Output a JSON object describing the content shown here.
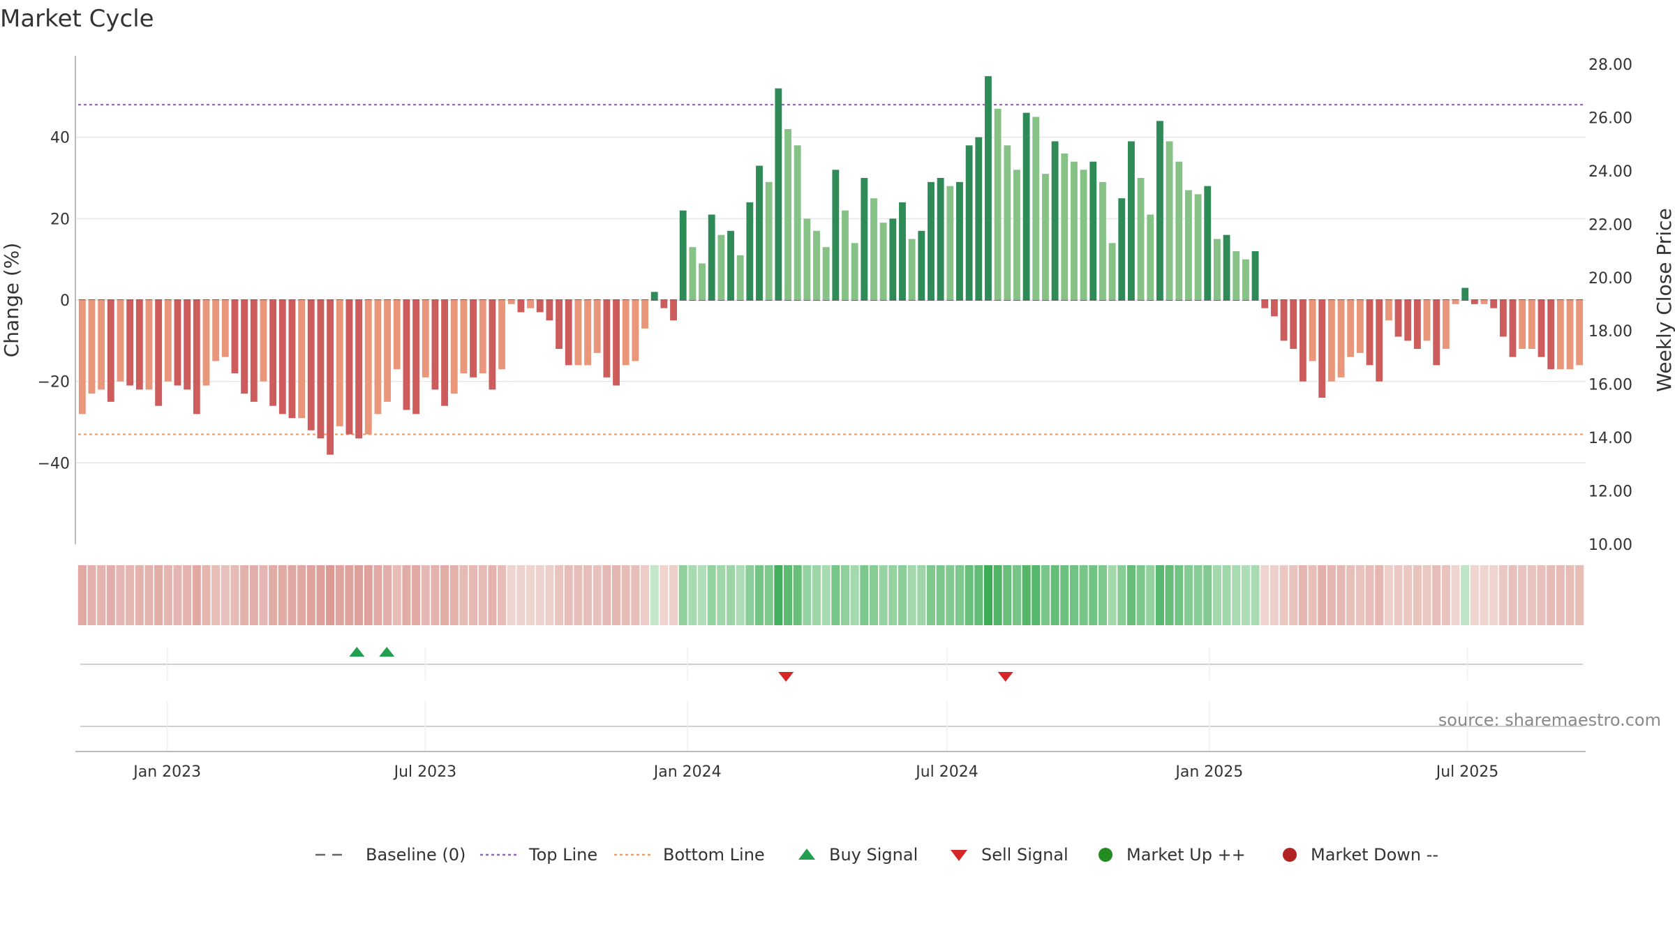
{
  "chart_data": {
    "type": "bar",
    "title": "Market Cycle",
    "ylabel": "Change (%)",
    "y2label": "Weekly Close Price",
    "ylim": [
      -60,
      60
    ],
    "y2lim": [
      10,
      28
    ],
    "yticks": [
      -40,
      -20,
      0,
      20,
      40
    ],
    "yticklabels": [
      "−40",
      "−20",
      "0",
      "20",
      "40"
    ],
    "y2ticks": [
      "10.00",
      "12.00",
      "14.00",
      "16.00",
      "18.00",
      "20.00",
      "22.00",
      "24.00",
      "26.00",
      "28.00"
    ],
    "top_line": 48,
    "bottom_line": -33,
    "x_start": "2022-10-30",
    "x_end": "2025-09-21",
    "xticks": [
      {
        "date": "2023-01-01",
        "label": "Jan 2023"
      },
      {
        "date": "2023-07-01",
        "label": "Jul 2023"
      },
      {
        "date": "2024-01-01",
        "label": "Jan 2024"
      },
      {
        "date": "2024-07-01",
        "label": "Jul 2024"
      },
      {
        "date": "2025-01-01",
        "label": "Jan 2025"
      },
      {
        "date": "2025-07-01",
        "label": "Jul 2025"
      }
    ],
    "weekly_change": [
      -28,
      -23,
      -22,
      -25,
      -20,
      -21,
      -22,
      -22,
      -26,
      -20,
      -21,
      -22,
      -28,
      -21,
      -15,
      -14,
      -18,
      -23,
      -25,
      -20,
      -26,
      -28,
      -29,
      -29,
      -32,
      -34,
      -38,
      -31,
      -33,
      -34,
      -33,
      -28,
      -25,
      -17,
      -27,
      -28,
      -19,
      -22,
      -26,
      -23,
      -18,
      -19,
      -18,
      -22,
      -17,
      -1,
      -3,
      -2,
      -3,
      -5,
      -12,
      -16,
      -16,
      -16,
      -13,
      -19,
      -21,
      -16,
      -15,
      -7,
      2,
      -2,
      -5,
      22,
      13,
      9,
      21,
      16,
      17,
      11,
      24,
      33,
      29,
      52,
      42,
      38,
      20,
      17,
      13,
      32,
      22,
      14,
      30,
      25,
      19,
      20,
      24,
      15,
      17,
      29,
      30,
      28,
      29,
      38,
      40,
      55,
      47,
      38,
      32,
      46,
      45,
      31,
      39,
      36,
      34,
      32,
      34,
      29,
      14,
      25,
      39,
      30,
      21,
      44,
      39,
      34,
      27,
      26,
      28,
      15,
      16,
      12,
      10,
      12,
      -2,
      -4,
      -10,
      -12,
      -20,
      -15,
      -24,
      -20,
      -19,
      -14,
      -13,
      -16,
      -20,
      -5,
      -9,
      -10,
      -12,
      -10,
      -16,
      -12,
      -1,
      3,
      -1,
      -1,
      -2,
      -9,
      -14,
      -12,
      -12,
      -14,
      -17,
      -17,
      -17,
      -16
    ],
    "buy_signals": [
      "2023-05-14",
      "2023-06-04"
    ],
    "sell_signals": [
      "2024-03-10",
      "2024-08-11"
    ],
    "legend": [
      {
        "name": "Baseline (0)",
        "marker": "dash",
        "color": "#666666"
      },
      {
        "name": "Top Line",
        "marker": "dotted",
        "color": "#9467bd"
      },
      {
        "name": "Bottom Line",
        "marker": "dotted",
        "color": "#f0a060"
      },
      {
        "name": "Buy Signal",
        "marker": "triangle-up",
        "color": "#22a050"
      },
      {
        "name": "Sell Signal",
        "marker": "triangle-down",
        "color": "#d62728"
      },
      {
        "name": "Market Up ++",
        "marker": "circle",
        "color": "#228b22"
      },
      {
        "name": "Market Down --",
        "marker": "circle",
        "color": "#b22222"
      }
    ],
    "legend_position": "bottom",
    "grid": true,
    "colors": {
      "strong_up": "#2e8b57",
      "up": "#86c286",
      "strong_down": "#cd5c5c",
      "down": "#e9967a",
      "top_line": "#9467bd",
      "bottom_line": "#f0a060"
    }
  },
  "source": "source: sharemaestro.com"
}
